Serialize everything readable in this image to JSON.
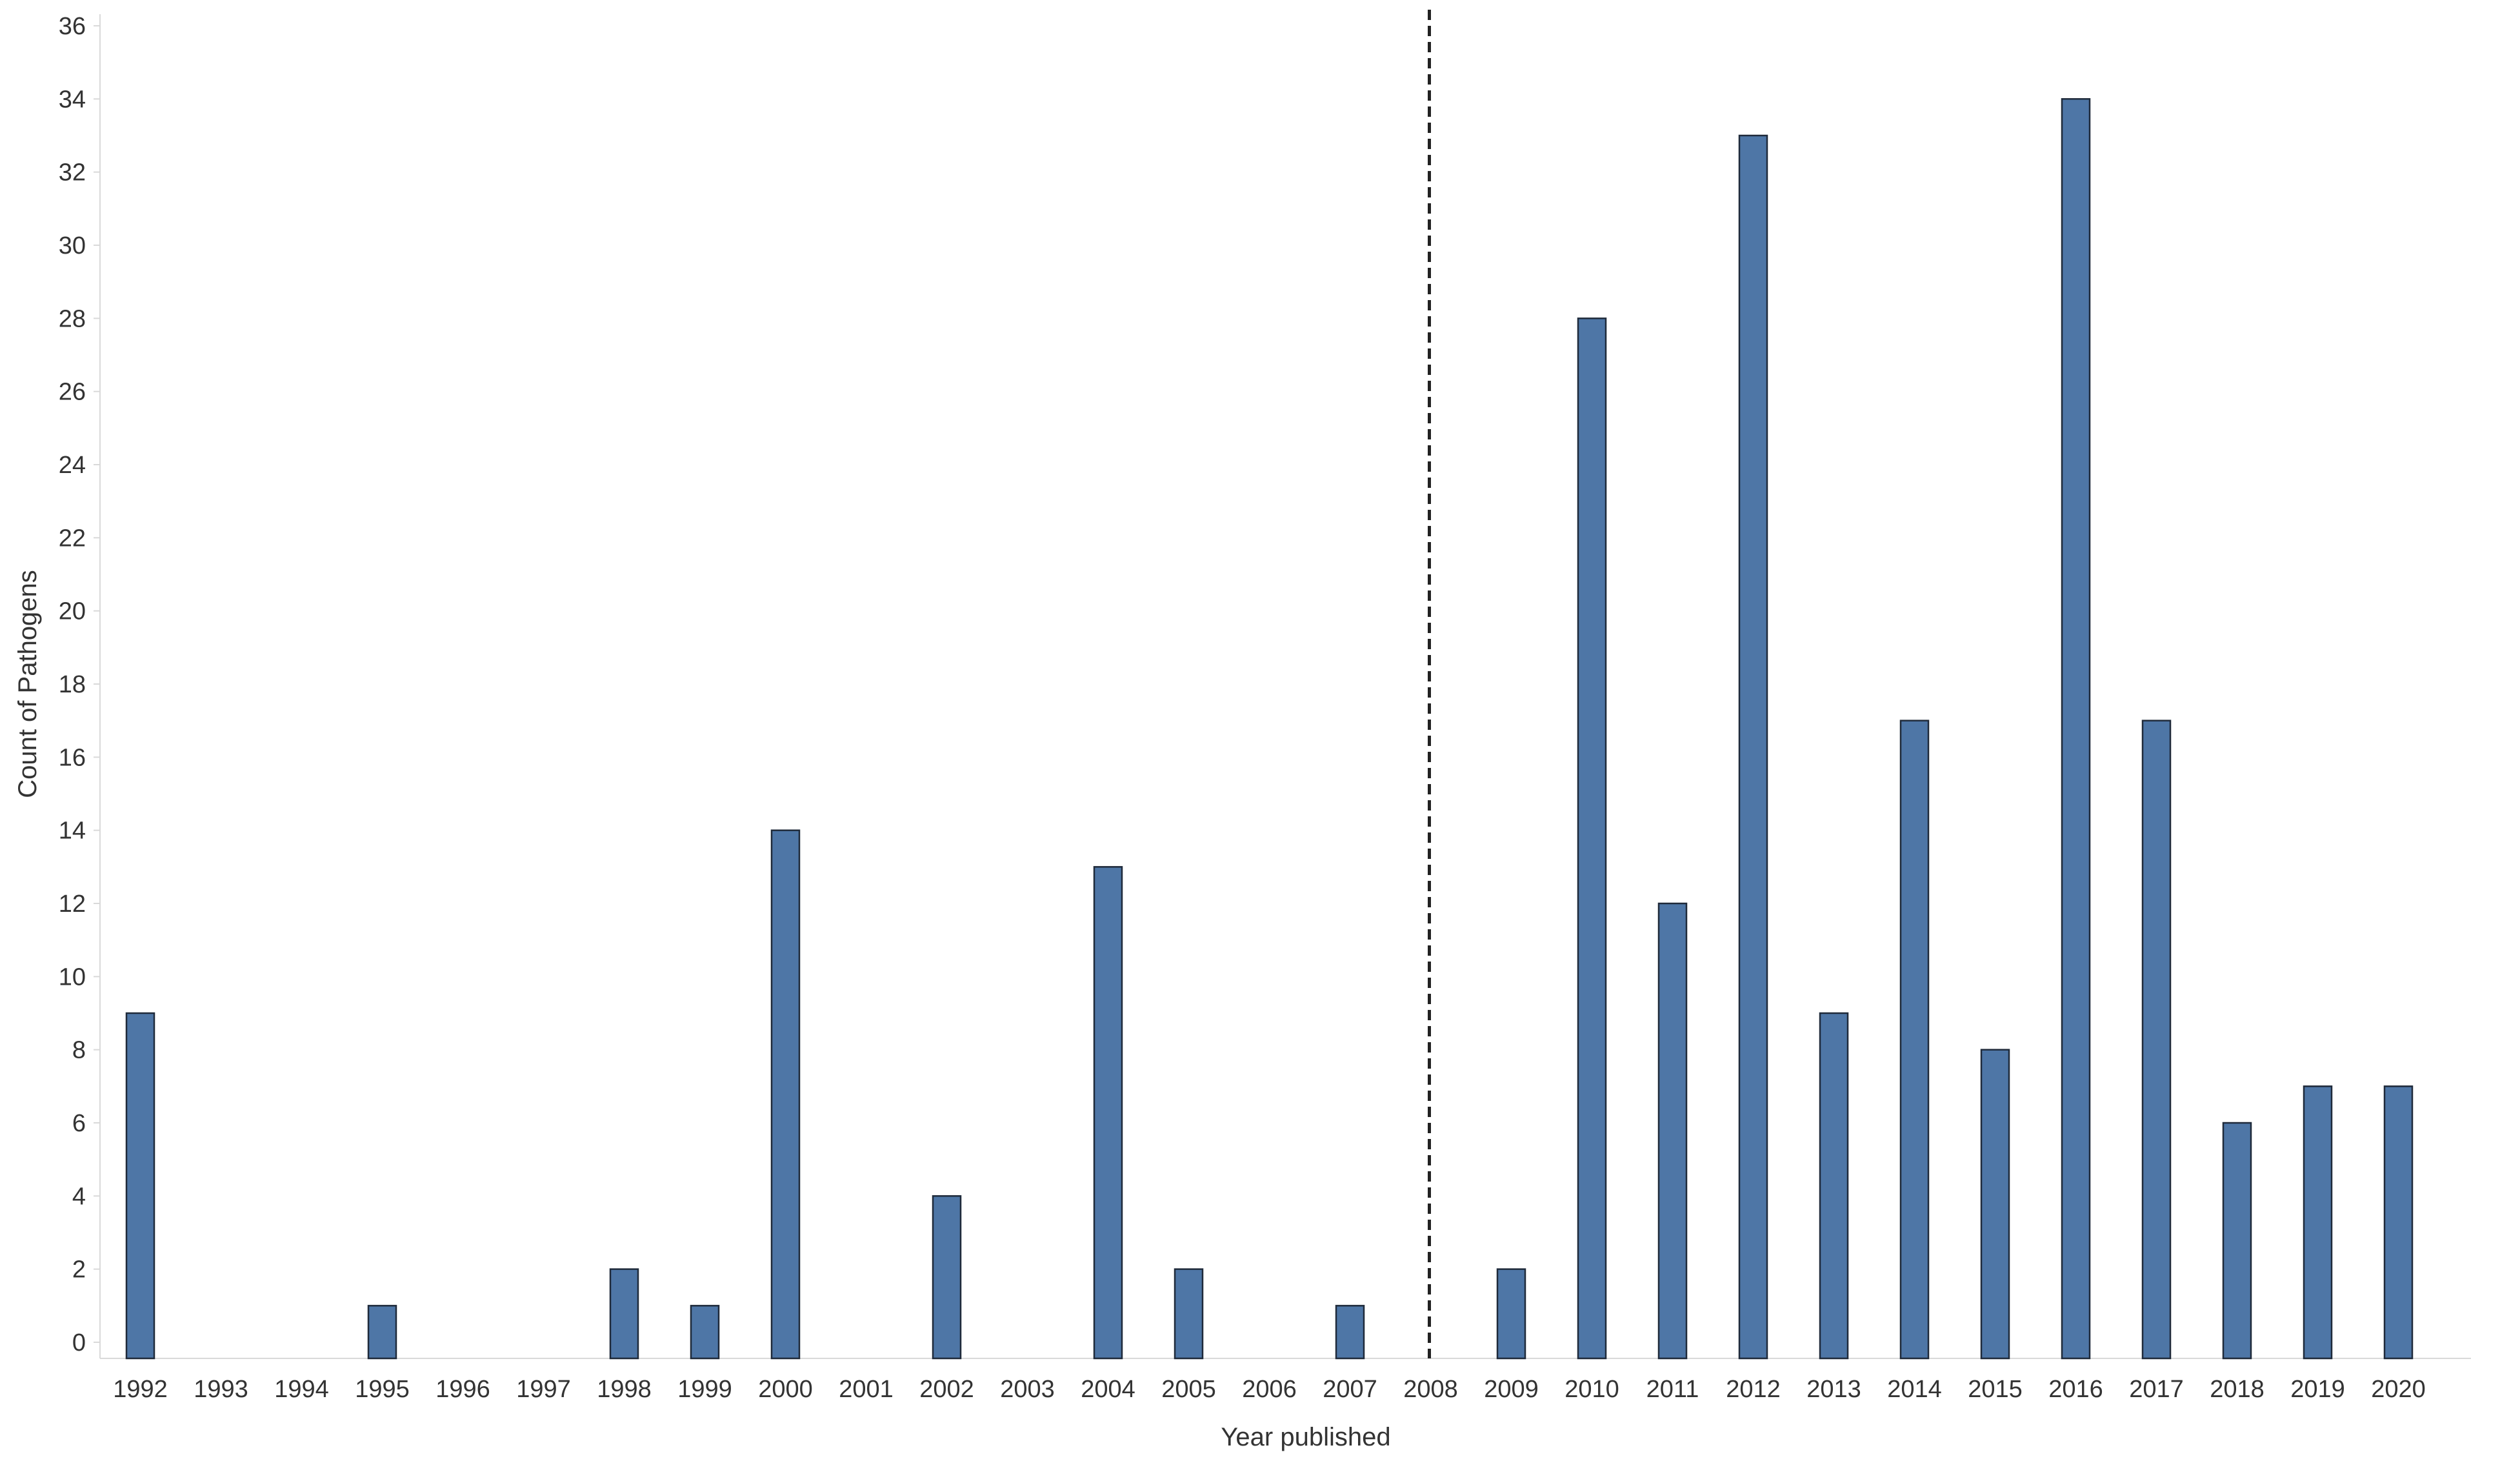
{
  "chart_data": {
    "type": "bar",
    "xlabel": "Year published",
    "ylabel": "Count of Pathogens",
    "ylim": [
      0,
      36
    ],
    "yticks": [
      0,
      2,
      4,
      6,
      8,
      10,
      12,
      14,
      16,
      18,
      20,
      22,
      24,
      26,
      28,
      30,
      32,
      34,
      36
    ],
    "categories": [
      "1992",
      "1993",
      "1994",
      "1995",
      "1996",
      "1997",
      "1998",
      "1999",
      "2000",
      "2001",
      "2002",
      "2003",
      "2004",
      "2005",
      "2006",
      "2007",
      "2008",
      "2009",
      "2010",
      "2011",
      "2012",
      "2013",
      "2014",
      "2015",
      "2016",
      "2017",
      "2018",
      "2019",
      "2020"
    ],
    "values": [
      9,
      0,
      0,
      1,
      0,
      0,
      2,
      1,
      14,
      0,
      4,
      0,
      13,
      2,
      0,
      1,
      0,
      2,
      28,
      12,
      33,
      9,
      17,
      8,
      34,
      17,
      6,
      7,
      7
    ],
    "reference_line": {
      "category": "2008",
      "style": "dashed"
    },
    "grid": false,
    "colors": {
      "bar": "#4e76a6",
      "bar_stroke": "#1f2a3a",
      "axis": "#d9d9d9",
      "reference_line": "#222222"
    }
  }
}
